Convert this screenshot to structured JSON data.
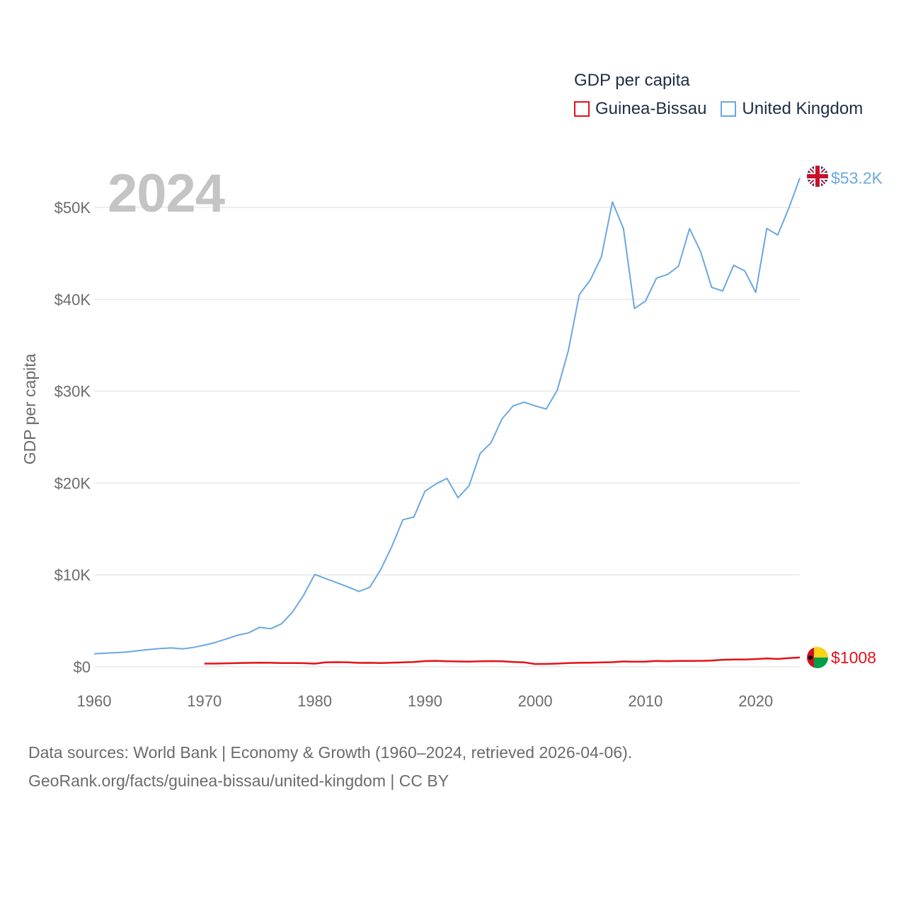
{
  "legend": {
    "title": "GDP per capita",
    "items": [
      {
        "name": "Guinea-Bissau",
        "color": "#e3121b"
      },
      {
        "name": "United Kingdom",
        "color": "#6aa8e2"
      }
    ]
  },
  "year_label": "2024",
  "source": {
    "line1": "Data sources: World Bank | Economy & Growth (1960–2024, retrieved 2026-04-06).",
    "line2": "GeoRank.org/facts/guinea-bissau/united-kingdom | CC BY"
  },
  "chart_data": {
    "type": "line",
    "title": "GDP per capita",
    "xlabel": "",
    "ylabel": "GDP per capita",
    "xlim": [
      1960,
      2024
    ],
    "ylim": [
      0,
      50000
    ],
    "x_ticks": [
      1960,
      1970,
      1980,
      1990,
      2000,
      2010,
      2020
    ],
    "x_tick_labels": [
      "1960",
      "1970",
      "1980",
      "1990",
      "2000",
      "2010",
      "2020"
    ],
    "y_ticks": [
      0,
      10000,
      20000,
      30000,
      40000,
      50000
    ],
    "y_tick_labels": [
      "$0",
      "$10K",
      "$20K",
      "$30K",
      "$40K",
      "$50K"
    ],
    "grid": true,
    "legend_position": "top-right",
    "series": [
      {
        "name": "United Kingdom",
        "color": "#6aa8e2",
        "end_label": "$53.2K",
        "start_year": 1960,
        "values": [
          1400,
          1480,
          1530,
          1610,
          1750,
          1880,
          1990,
          2050,
          1950,
          2100,
          2350,
          2650,
          3030,
          3430,
          3680,
          4300,
          4140,
          4680,
          5980,
          7800,
          10050,
          9600,
          9150,
          8700,
          8200,
          8650,
          10600,
          13100,
          16000,
          16300,
          19100,
          19900,
          20500,
          18400,
          19700,
          23200,
          24400,
          27000,
          28400,
          28800,
          28400,
          28050,
          30100,
          34400,
          40500,
          42100,
          44600,
          50600,
          47700,
          39000,
          39800,
          42300,
          42700,
          43600,
          47700,
          45200,
          41300,
          40900,
          43700,
          43100,
          40750,
          47700,
          47000,
          49900,
          53200
        ]
      },
      {
        "name": "Guinea-Bissau",
        "color": "#e3121b",
        "end_label": "$1008",
        "start_year": 1970,
        "values": [
          350,
          350,
          380,
          400,
          420,
          450,
          430,
          410,
          400,
          390,
          340,
          480,
          500,
          480,
          420,
          430,
          400,
          450,
          480,
          520,
          620,
          650,
          600,
          580,
          560,
          590,
          620,
          600,
          520,
          480,
          300,
          310,
          350,
          400,
          430,
          450,
          470,
          500,
          580,
          550,
          560,
          640,
          610,
          640,
          640,
          650,
          670,
          760,
          790,
          790,
          840,
          910,
          850,
          950,
          1008
        ]
      }
    ]
  }
}
